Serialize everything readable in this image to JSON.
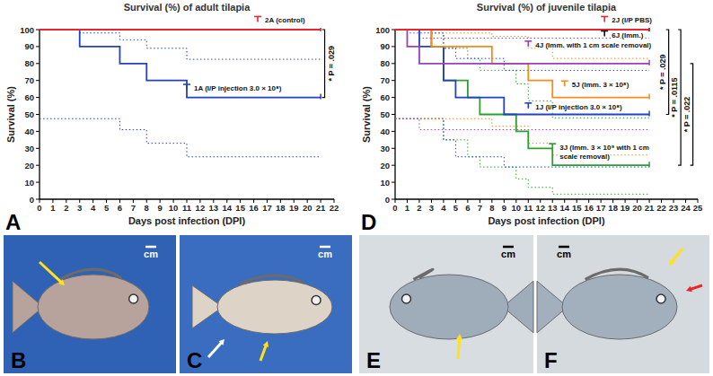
{
  "chart_data": [
    {
      "type": "line",
      "panel": "A",
      "title": "Survival (%) of adult tilapia",
      "x_label": "Days post infection (DPI)",
      "y_label": "Survival (%)",
      "x": [
        0,
        1,
        2,
        3,
        4,
        5,
        6,
        7,
        8,
        9,
        10,
        11,
        12,
        13,
        14,
        15,
        16,
        17,
        18,
        19,
        20,
        21
      ],
      "xlim": [
        0,
        22
      ],
      "xticks": [
        0,
        1,
        2,
        3,
        4,
        5,
        6,
        7,
        8,
        9,
        10,
        11,
        12,
        13,
        14,
        15,
        16,
        17,
        18,
        19,
        20,
        21,
        22
      ],
      "ylim": [
        0,
        100
      ],
      "yticks": [
        0,
        10,
        20,
        30,
        40,
        50,
        60,
        70,
        80,
        90,
        100
      ],
      "grid": false,
      "legend": "inline",
      "line_style": "step",
      "series": [
        {
          "name": "2A (control)",
          "color": "#e8262b",
          "values": [
            100,
            100,
            100,
            100,
            100,
            100,
            100,
            100,
            100,
            100,
            100,
            100,
            100,
            100,
            100,
            100,
            100,
            100,
            100,
            100,
            100,
            100
          ]
        },
        {
          "name": "1A (I/P injection 3.0 × 10⁸)",
          "color": "#2340c8",
          "values": [
            100,
            100,
            100,
            90,
            90,
            90,
            80,
            80,
            70,
            70,
            70,
            60,
            60,
            60,
            60,
            60,
            60,
            60,
            60,
            60,
            60,
            60
          ],
          "ci_upper": [
            100,
            100,
            100,
            98,
            98,
            98,
            94,
            94,
            89,
            89,
            89,
            82.5,
            82.5,
            82.5,
            82.5,
            82.5,
            82.5,
            82.5,
            82.5,
            82.5,
            82.5,
            82.5
          ],
          "ci_lower": [
            47.5,
            47.5,
            47.5,
            47.5,
            47.5,
            47.5,
            41,
            41,
            33,
            33,
            33,
            25,
            25,
            25,
            25,
            25,
            25,
            25,
            25,
            25,
            25,
            25
          ]
        }
      ],
      "annotations": [
        "* P = .029"
      ]
    },
    {
      "type": "line",
      "panel": "D",
      "title": "Survival (%) of juvenile tilapia",
      "x_label": "Days post infection (DPI)",
      "y_label": "Survival (%)",
      "x": [
        0,
        1,
        2,
        3,
        4,
        5,
        6,
        7,
        8,
        9,
        10,
        11,
        12,
        13,
        14,
        15,
        16,
        17,
        18,
        19,
        20,
        21
      ],
      "xlim": [
        0,
        25
      ],
      "xticks": [
        0,
        1,
        2,
        3,
        4,
        5,
        6,
        7,
        8,
        9,
        10,
        11,
        12,
        13,
        14,
        15,
        16,
        17,
        18,
        19,
        20,
        21,
        22,
        23,
        24,
        25
      ],
      "ylim": [
        0,
        100
      ],
      "yticks": [
        0,
        10,
        20,
        30,
        40,
        50,
        60,
        70,
        80,
        90,
        100
      ],
      "grid": false,
      "legend": "inline",
      "line_style": "step",
      "series": [
        {
          "name": "2J (I/P PBS)",
          "color": "#e8262b",
          "values": [
            100,
            100,
            100,
            100,
            100,
            100,
            100,
            100,
            100,
            100,
            100,
            100,
            100,
            100,
            100,
            100,
            100,
            100,
            100,
            100,
            100,
            100
          ]
        },
        {
          "name": "6J (Imm.)",
          "color": "#111111",
          "values": [
            100,
            100,
            100,
            100,
            100,
            100,
            100,
            100,
            100,
            100,
            100,
            100,
            100,
            100,
            100,
            100,
            100,
            100,
            100,
            100,
            100,
            100
          ]
        },
        {
          "name": "4J (Imm. with 1 cm scale removal)",
          "color": "#9b3fbf",
          "values": [
            100,
            90,
            80,
            80,
            80,
            80,
            80,
            80,
            80,
            80,
            80,
            80,
            80,
            80,
            80,
            80,
            80,
            80,
            80,
            80,
            80,
            80
          ],
          "ci_upper": [
            100,
            98,
            95,
            95,
            95,
            95,
            95,
            95,
            95,
            95,
            95,
            95,
            95,
            95,
            95,
            95,
            95,
            95,
            95,
            95,
            95,
            95
          ],
          "ci_lower": [
            47.5,
            47.5,
            41,
            41,
            41,
            41,
            41,
            41,
            41,
            41,
            41,
            41,
            41,
            41,
            41,
            41,
            41,
            41,
            41,
            41,
            41,
            41
          ]
        },
        {
          "name": "5J (Imm. 3 × 10⁸)",
          "color": "#f28c1f",
          "values": [
            100,
            100,
            100,
            90,
            90,
            90,
            90,
            90,
            80,
            80,
            80,
            70,
            70,
            60,
            60,
            60,
            60,
            60,
            60,
            60,
            60,
            60
          ],
          "ci_upper": [
            100,
            100,
            100,
            98,
            98,
            98,
            98,
            98,
            96,
            96,
            96,
            89,
            89,
            83,
            83,
            83,
            83,
            83,
            83,
            83,
            83,
            83
          ],
          "ci_lower": [
            47.5,
            47.5,
            47.5,
            47.5,
            47.5,
            47.5,
            47.5,
            47.5,
            43,
            43,
            43,
            33,
            33,
            26,
            26,
            26,
            26,
            26,
            26,
            26,
            26,
            26
          ]
        },
        {
          "name": "1J (I/P injection 3.0 × 10⁸)",
          "color": "#2340c8",
          "values": [
            100,
            100,
            90,
            90,
            70,
            60,
            60,
            60,
            60,
            50,
            50,
            50,
            50,
            50,
            50,
            50,
            50,
            50,
            50,
            50,
            50,
            50
          ],
          "ci_upper": [
            100,
            100,
            98,
            98,
            89,
            83,
            83,
            83,
            83,
            76,
            76,
            76,
            76,
            76,
            76,
            76,
            76,
            76,
            76,
            76,
            76,
            76
          ],
          "ci_lower": [
            47.5,
            47.5,
            47.5,
            47.5,
            35,
            25,
            25,
            25,
            25,
            19,
            19,
            19,
            19,
            19,
            19,
            19,
            19,
            19,
            19,
            19,
            19,
            19
          ]
        },
        {
          "name": "3J (Imm. 3 × 10⁹ with 1 cm scale removal)",
          "color": "#2ca02c",
          "values": [
            100,
            100,
            100,
            90,
            70,
            70,
            60,
            50,
            50,
            50,
            40,
            30,
            30,
            20,
            20,
            20,
            20,
            20,
            20,
            20,
            20,
            20
          ],
          "ci_upper": [
            100,
            100,
            100,
            98,
            89,
            89,
            83,
            76,
            76,
            76,
            68,
            58,
            58,
            48,
            48,
            48,
            48,
            48,
            48,
            48,
            48,
            48
          ],
          "ci_lower": [
            47.5,
            47.5,
            47.5,
            47.5,
            35,
            35,
            25,
            19,
            19,
            19,
            12,
            7,
            7,
            3,
            3,
            3,
            3,
            3,
            3,
            3,
            3,
            3
          ]
        }
      ],
      "annotations": [
        "* P = .029",
        "* P = .0115",
        "* P = .022"
      ]
    }
  ],
  "photos": [
    {
      "panel": "B",
      "scale_label": "cm"
    },
    {
      "panel": "C",
      "scale_label": "cm"
    },
    {
      "panel": "E",
      "scale_label": "cm"
    },
    {
      "panel": "F",
      "scale_label": "cm"
    }
  ]
}
